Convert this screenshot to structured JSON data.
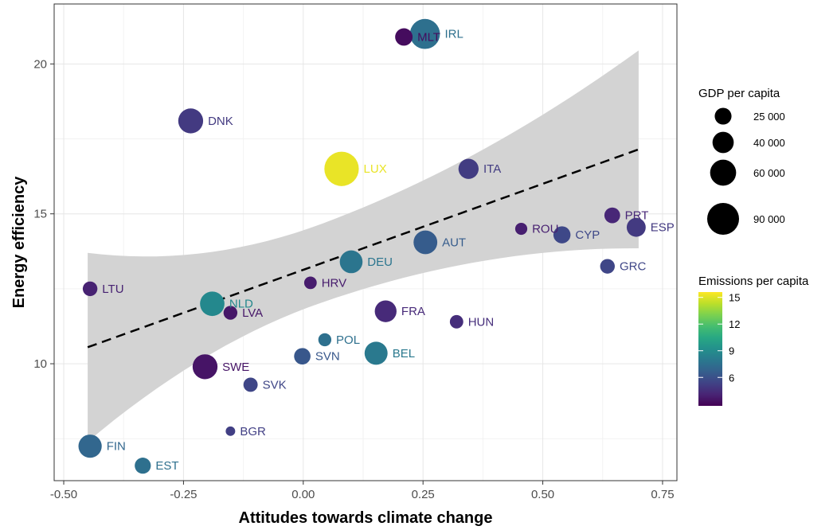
{
  "chart_data": {
    "type": "scatter",
    "xlabel": "Attitudes towards climate change",
    "ylabel": "Energy efficiency",
    "xlim": [
      -0.52,
      0.78
    ],
    "ylim": [
      6.1,
      22.0
    ],
    "x_ticks": [
      {
        "value": -0.5,
        "label": "-0.50"
      },
      {
        "value": -0.25,
        "label": "-0.25"
      },
      {
        "value": 0.0,
        "label": "0.00"
      },
      {
        "value": 0.25,
        "label": "0.25"
      },
      {
        "value": 0.5,
        "label": "0.50"
      },
      {
        "value": 0.75,
        "label": "0.75"
      }
    ],
    "y_ticks": [
      {
        "value": 10,
        "label": "10"
      },
      {
        "value": 15,
        "label": "15"
      },
      {
        "value": 20,
        "label": "20"
      }
    ],
    "grid": true,
    "points": [
      {
        "label": "IRL",
        "x": 0.254,
        "y": 21.0,
        "gdp": 80000,
        "emissions": 7.5
      },
      {
        "label": "MLT",
        "x": 0.21,
        "y": 20.9,
        "gdp": 27000,
        "emissions": 3.2
      },
      {
        "label": "DNK",
        "x": -0.235,
        "y": 18.1,
        "gdp": 55000,
        "emissions": 5.0
      },
      {
        "label": "LUX",
        "x": 0.08,
        "y": 16.5,
        "gdp": 105000,
        "emissions": 15.2
      },
      {
        "label": "ITA",
        "x": 0.345,
        "y": 16.5,
        "gdp": 36000,
        "emissions": 5.1
      },
      {
        "label": "PRT",
        "x": 0.645,
        "y": 14.95,
        "gdp": 22000,
        "emissions": 4.2
      },
      {
        "label": "ESP",
        "x": 0.695,
        "y": 14.55,
        "gdp": 32000,
        "emissions": 5.0
      },
      {
        "label": "ROU",
        "x": 0.455,
        "y": 14.5,
        "gdp": 13000,
        "emissions": 3.9
      },
      {
        "label": "CYP",
        "x": 0.54,
        "y": 14.3,
        "gdp": 26000,
        "emissions": 5.6
      },
      {
        "label": "AUT",
        "x": 0.255,
        "y": 14.05,
        "gdp": 50000,
        "emissions": 6.5
      },
      {
        "label": "DEU",
        "x": 0.1,
        "y": 13.4,
        "gdp": 46000,
        "emissions": 7.8
      },
      {
        "label": "GRC",
        "x": 0.635,
        "y": 13.25,
        "gdp": 19000,
        "emissions": 5.5
      },
      {
        "label": "HRV",
        "x": 0.015,
        "y": 12.7,
        "gdp": 14000,
        "emissions": 3.8
      },
      {
        "label": "LTU",
        "x": -0.445,
        "y": 12.5,
        "gdp": 19000,
        "emissions": 4.0
      },
      {
        "label": "NLD",
        "x": -0.19,
        "y": 12.0,
        "gdp": 53000,
        "emissions": 8.8
      },
      {
        "label": "FRA",
        "x": 0.172,
        "y": 11.75,
        "gdp": 42000,
        "emissions": 4.3
      },
      {
        "label": "LVA",
        "x": -0.152,
        "y": 11.7,
        "gdp": 17000,
        "emissions": 3.6
      },
      {
        "label": "HUN",
        "x": 0.32,
        "y": 11.4,
        "gdp": 16000,
        "emissions": 4.5
      },
      {
        "label": "POL",
        "x": 0.045,
        "y": 10.8,
        "gdp": 15000,
        "emissions": 7.5
      },
      {
        "label": "BEL",
        "x": 0.152,
        "y": 10.35,
        "gdp": 47000,
        "emissions": 8.0
      },
      {
        "label": "SVN",
        "x": -0.002,
        "y": 10.25,
        "gdp": 24000,
        "emissions": 6.3
      },
      {
        "label": "SWE",
        "x": -0.205,
        "y": 9.9,
        "gdp": 55000,
        "emissions": 3.5
      },
      {
        "label": "SVK",
        "x": -0.11,
        "y": 9.3,
        "gdp": 18000,
        "emissions": 5.5
      },
      {
        "label": "BGR",
        "x": -0.152,
        "y": 7.75,
        "gdp": 8000,
        "emissions": 5.2
      },
      {
        "label": "FIN",
        "x": -0.445,
        "y": 7.25,
        "gdp": 48000,
        "emissions": 7.0
      },
      {
        "label": "EST",
        "x": -0.335,
        "y": 6.6,
        "gdp": 23000,
        "emissions": 7.5
      }
    ],
    "trend": {
      "style": "dashed",
      "x": [
        -0.45,
        0.7
      ],
      "y": [
        10.55,
        17.15
      ]
    },
    "confidence_band": {
      "x": [
        -0.45,
        0.7
      ],
      "upper": [
        13.7,
        20.45
      ],
      "lower": [
        7.4,
        13.85
      ]
    },
    "legend_size": {
      "title": "GDP per capita",
      "entries": [
        {
          "value": 25000,
          "label": "25 000"
        },
        {
          "value": 40000,
          "label": "40 000"
        },
        {
          "value": 60000,
          "label": "60 000"
        },
        {
          "value": 90000,
          "label": "90 000"
        }
      ]
    },
    "legend_color": {
      "title": "Emissions per capita",
      "min": 2.8,
      "max": 15.6,
      "ticks": [
        {
          "value": 6,
          "label": "6"
        },
        {
          "value": 9,
          "label": "9"
        },
        {
          "value": 12,
          "label": "12"
        },
        {
          "value": 15,
          "label": "15"
        }
      ]
    },
    "legend_placement": "right"
  }
}
